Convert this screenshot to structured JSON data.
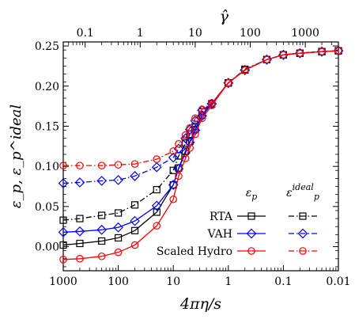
{
  "chart_data": {
    "type": "line",
    "xlabel": "4πη/s",
    "top_xlabel": "γ̂",
    "ylabel": "ε_p, ε_p^ideal",
    "x_scale": "log",
    "x_reversed": true,
    "xlim": [
      1000,
      0.01
    ],
    "ylim": [
      -0.03,
      0.255
    ],
    "x_tick_labels": [
      "1000",
      "100",
      "10",
      "1",
      "0.1",
      "0.01"
    ],
    "x_ticks": [
      1000,
      100,
      10,
      1,
      0.1,
      0.01
    ],
    "top_tick_labels": [
      "0.1",
      "1",
      "10",
      "100",
      "1000"
    ],
    "top_ticks_at_x": [
      400,
      40,
      4,
      0.4,
      0.04
    ],
    "y_ticks": [
      0.0,
      0.05,
      0.1,
      0.15,
      0.2,
      0.25
    ],
    "y_tick_labels": [
      "0.00",
      "0.05",
      "0.10",
      "0.15",
      "0.20",
      "0.25"
    ],
    "grid": false,
    "legend": {
      "placement": "lower-right",
      "column_headers": [
        "ε_p",
        "ε_p^ideal"
      ],
      "rows": [
        "RTA",
        "VAH",
        "Scaled Hydro"
      ]
    },
    "x": [
      1000,
      500,
      200,
      100,
      50,
      20,
      10,
      8,
      6,
      5,
      4,
      3,
      2,
      1,
      0.5,
      0.2,
      0.1,
      0.05,
      0.02,
      0.01
    ],
    "series": [
      {
        "name": "RTA",
        "variable": "ε_p",
        "color": "#000000",
        "dash": "solid",
        "marker": "square",
        "values": [
          0.002,
          0.004,
          0.007,
          0.011,
          0.02,
          0.043,
          0.077,
          0.098,
          0.119,
          0.131,
          0.146,
          0.164,
          0.178,
          0.204,
          0.22,
          0.233,
          0.239,
          0.241,
          0.243,
          0.244
        ]
      },
      {
        "name": "RTA",
        "variable": "ε_p^ideal",
        "color": "#000000",
        "dash": "dashdot",
        "marker": "square",
        "values": [
          0.033,
          0.035,
          0.039,
          0.042,
          0.052,
          0.071,
          0.095,
          0.113,
          0.129,
          0.14,
          0.15,
          0.168,
          0.178,
          0.204,
          0.221,
          0.233,
          0.239,
          0.241,
          0.243,
          0.244
        ]
      },
      {
        "name": "VAH",
        "variable": "ε_p",
        "color": "#0000ff",
        "dash": "solid",
        "marker": "diamond",
        "values": [
          0.018,
          0.019,
          0.021,
          0.024,
          0.032,
          0.051,
          0.077,
          0.097,
          0.117,
          0.13,
          0.145,
          0.163,
          0.178,
          0.204,
          0.22,
          0.233,
          0.239,
          0.241,
          0.243,
          0.244
        ]
      },
      {
        "name": "VAH",
        "variable": "ε_p^ideal",
        "color": "#0000ff",
        "dash": "dashdot",
        "marker": "diamond",
        "values": [
          0.079,
          0.08,
          0.082,
          0.083,
          0.088,
          0.099,
          0.111,
          0.122,
          0.135,
          0.146,
          0.157,
          0.17,
          0.178,
          0.204,
          0.22,
          0.233,
          0.239,
          0.241,
          0.243,
          0.244
        ]
      },
      {
        "name": "Scaled Hydro",
        "variable": "ε_p",
        "color": "#ff0000",
        "dash": "solid",
        "marker": "circle",
        "values": [
          -0.016,
          -0.015,
          -0.012,
          -0.007,
          0.002,
          0.026,
          0.059,
          0.088,
          0.11,
          0.123,
          0.14,
          0.16,
          0.176,
          0.204,
          0.22,
          0.233,
          0.239,
          0.241,
          0.243,
          0.244
        ]
      },
      {
        "name": "Scaled Hydro",
        "variable": "ε_p^ideal",
        "color": "#ff0000",
        "dash": "dashdot",
        "marker": "circle",
        "values": [
          0.101,
          0.101,
          0.101,
          0.102,
          0.103,
          0.109,
          0.119,
          0.128,
          0.139,
          0.148,
          0.16,
          0.171,
          0.179,
          0.204,
          0.22,
          0.233,
          0.239,
          0.241,
          0.243,
          0.244
        ]
      }
    ]
  }
}
